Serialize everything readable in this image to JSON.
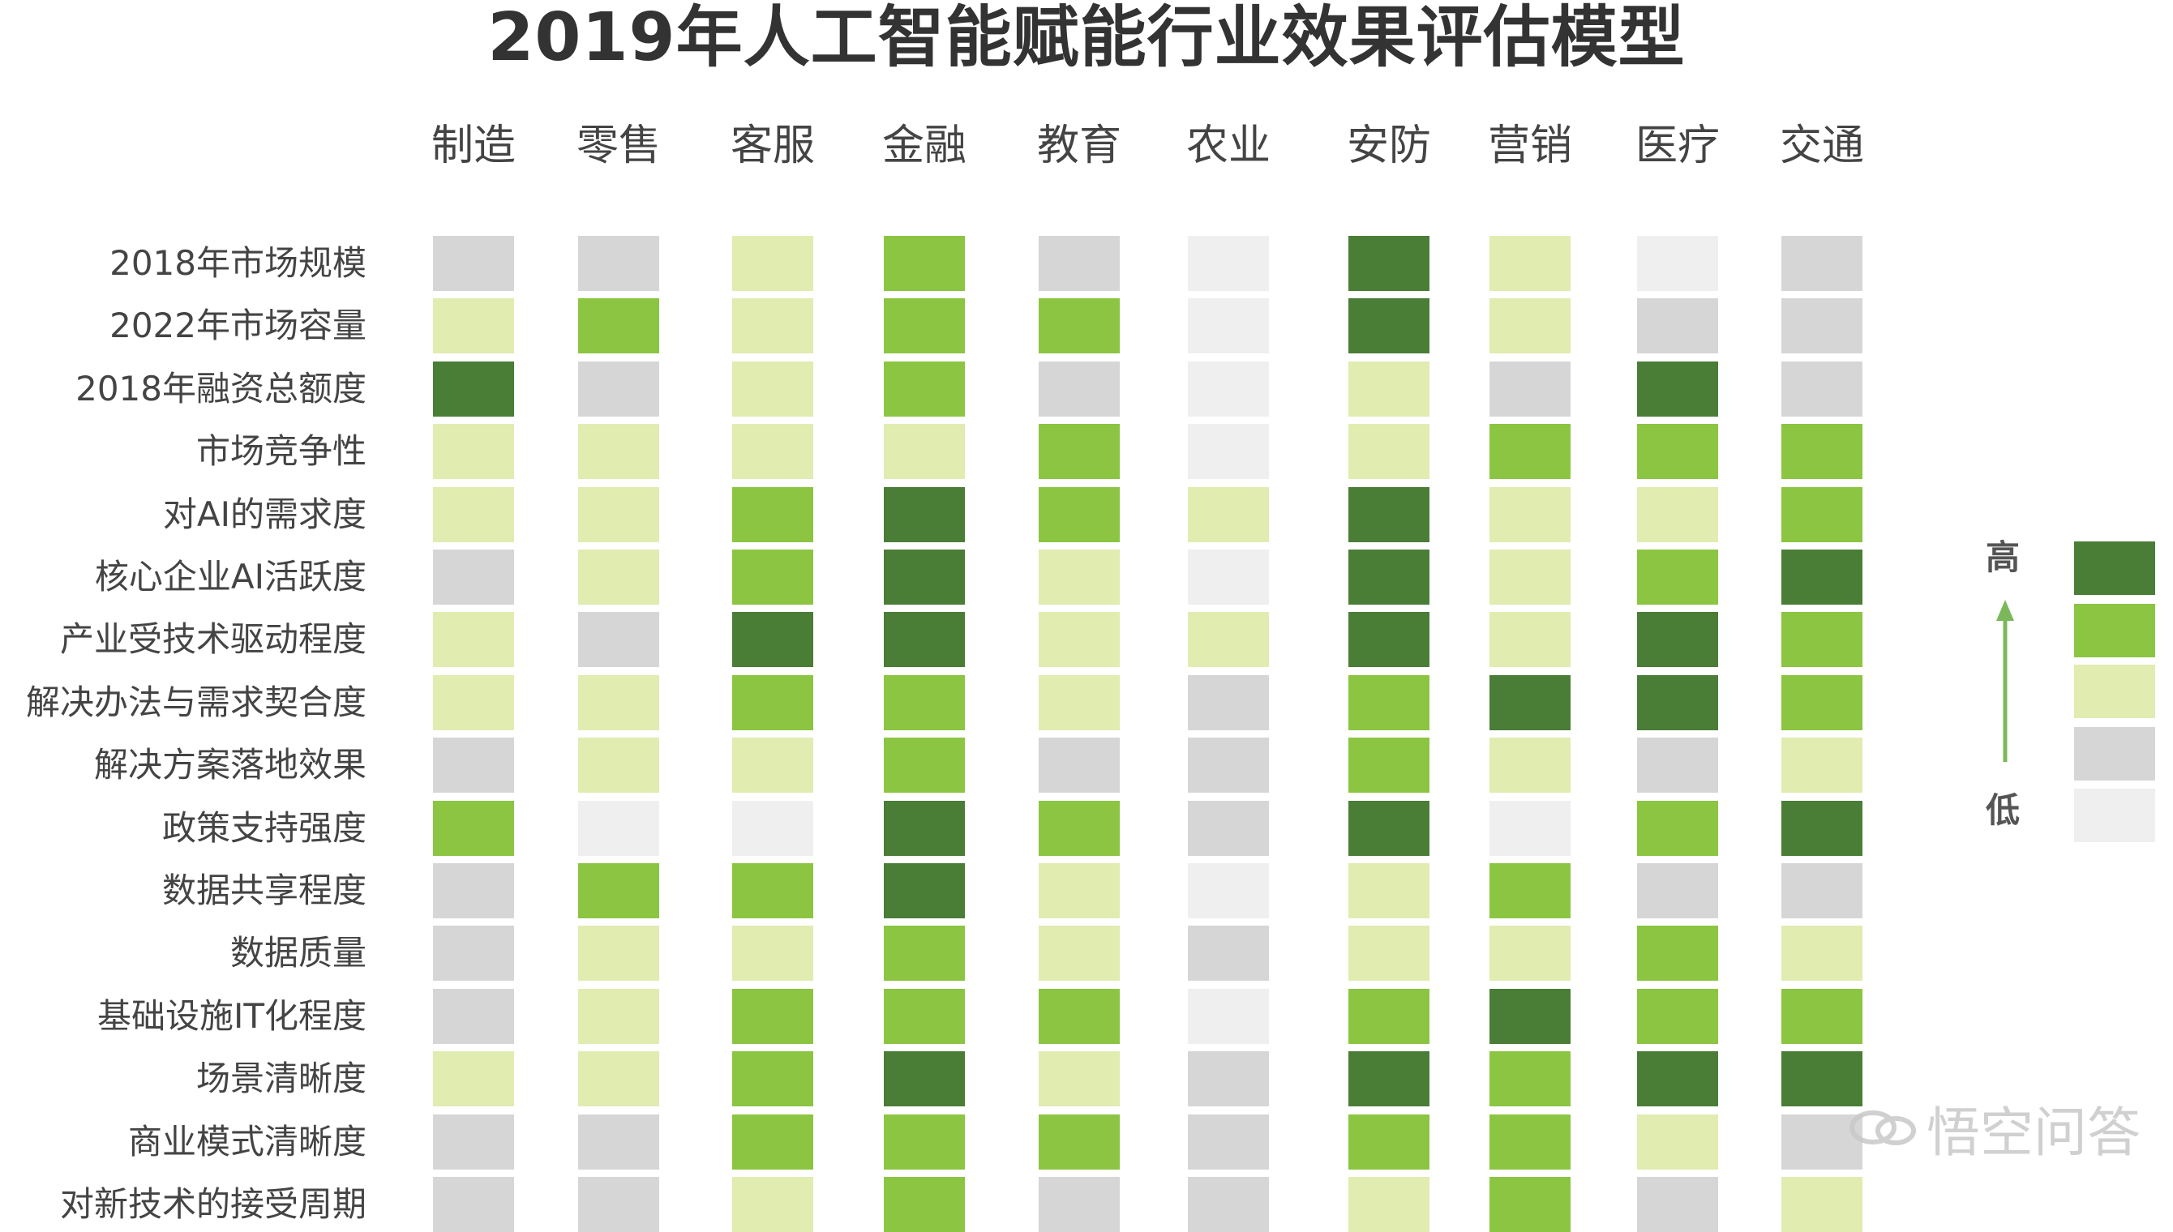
{
  "title": "2019年人工智能赋能行业效果评估模型",
  "colors": {
    "level1": "#efefef",
    "level2": "#d6d6d6",
    "level3": "#e0ecb0",
    "level4": "#8bc541",
    "level5": "#4a7d36",
    "arrow": "#7ab85a"
  },
  "legend": {
    "high": "高",
    "low": "低"
  },
  "watermark": "悟空问答",
  "chart_data": {
    "type": "heatmap",
    "title": "2019年人工智能赋能行业效果评估模型",
    "columns": [
      "制造",
      "零售",
      "客服",
      "金融",
      "教育",
      "农业",
      "安防",
      "营销",
      "医疗",
      "交通"
    ],
    "rows": [
      "2018年市场规模",
      "2022年市场容量",
      "2018年融资总额度",
      "市场竞争性",
      "对AI的需求度",
      "核心企业AI活跃度",
      "产业受技术驱动程度",
      "解决办法与需求契合度",
      "解决方案落地效果",
      "政策支持强度",
      "数据共享程度",
      "数据质量",
      "基础设施IT化程度",
      "场景清晰度",
      "商业模式清晰度",
      "对新技术的接受周期"
    ],
    "scale": {
      "min": 1,
      "max": 5,
      "min_label": "低",
      "max_label": "高"
    },
    "values": [
      [
        2,
        2,
        3,
        4,
        2,
        1,
        5,
        3,
        1,
        2
      ],
      [
        3,
        4,
        3,
        4,
        4,
        1,
        5,
        3,
        2,
        2
      ],
      [
        5,
        2,
        3,
        4,
        2,
        1,
        3,
        2,
        5,
        2
      ],
      [
        3,
        3,
        3,
        3,
        4,
        1,
        3,
        4,
        4,
        4
      ],
      [
        3,
        3,
        4,
        5,
        4,
        3,
        5,
        3,
        3,
        4
      ],
      [
        2,
        3,
        4,
        5,
        3,
        1,
        5,
        3,
        4,
        5
      ],
      [
        3,
        2,
        5,
        5,
        3,
        3,
        5,
        3,
        5,
        4
      ],
      [
        3,
        3,
        4,
        4,
        3,
        2,
        4,
        5,
        5,
        4
      ],
      [
        2,
        3,
        3,
        4,
        2,
        2,
        4,
        3,
        2,
        3
      ],
      [
        4,
        1,
        1,
        5,
        4,
        2,
        5,
        1,
        4,
        5
      ],
      [
        2,
        4,
        4,
        5,
        3,
        1,
        3,
        4,
        2,
        2
      ],
      [
        2,
        3,
        3,
        4,
        3,
        2,
        3,
        3,
        4,
        3
      ],
      [
        2,
        3,
        4,
        4,
        4,
        1,
        4,
        5,
        4,
        4
      ],
      [
        3,
        3,
        4,
        5,
        3,
        2,
        5,
        4,
        5,
        5
      ],
      [
        2,
        2,
        4,
        4,
        4,
        2,
        4,
        4,
        3,
        2
      ],
      [
        2,
        2,
        3,
        4,
        2,
        2,
        3,
        4,
        2,
        3
      ]
    ]
  }
}
